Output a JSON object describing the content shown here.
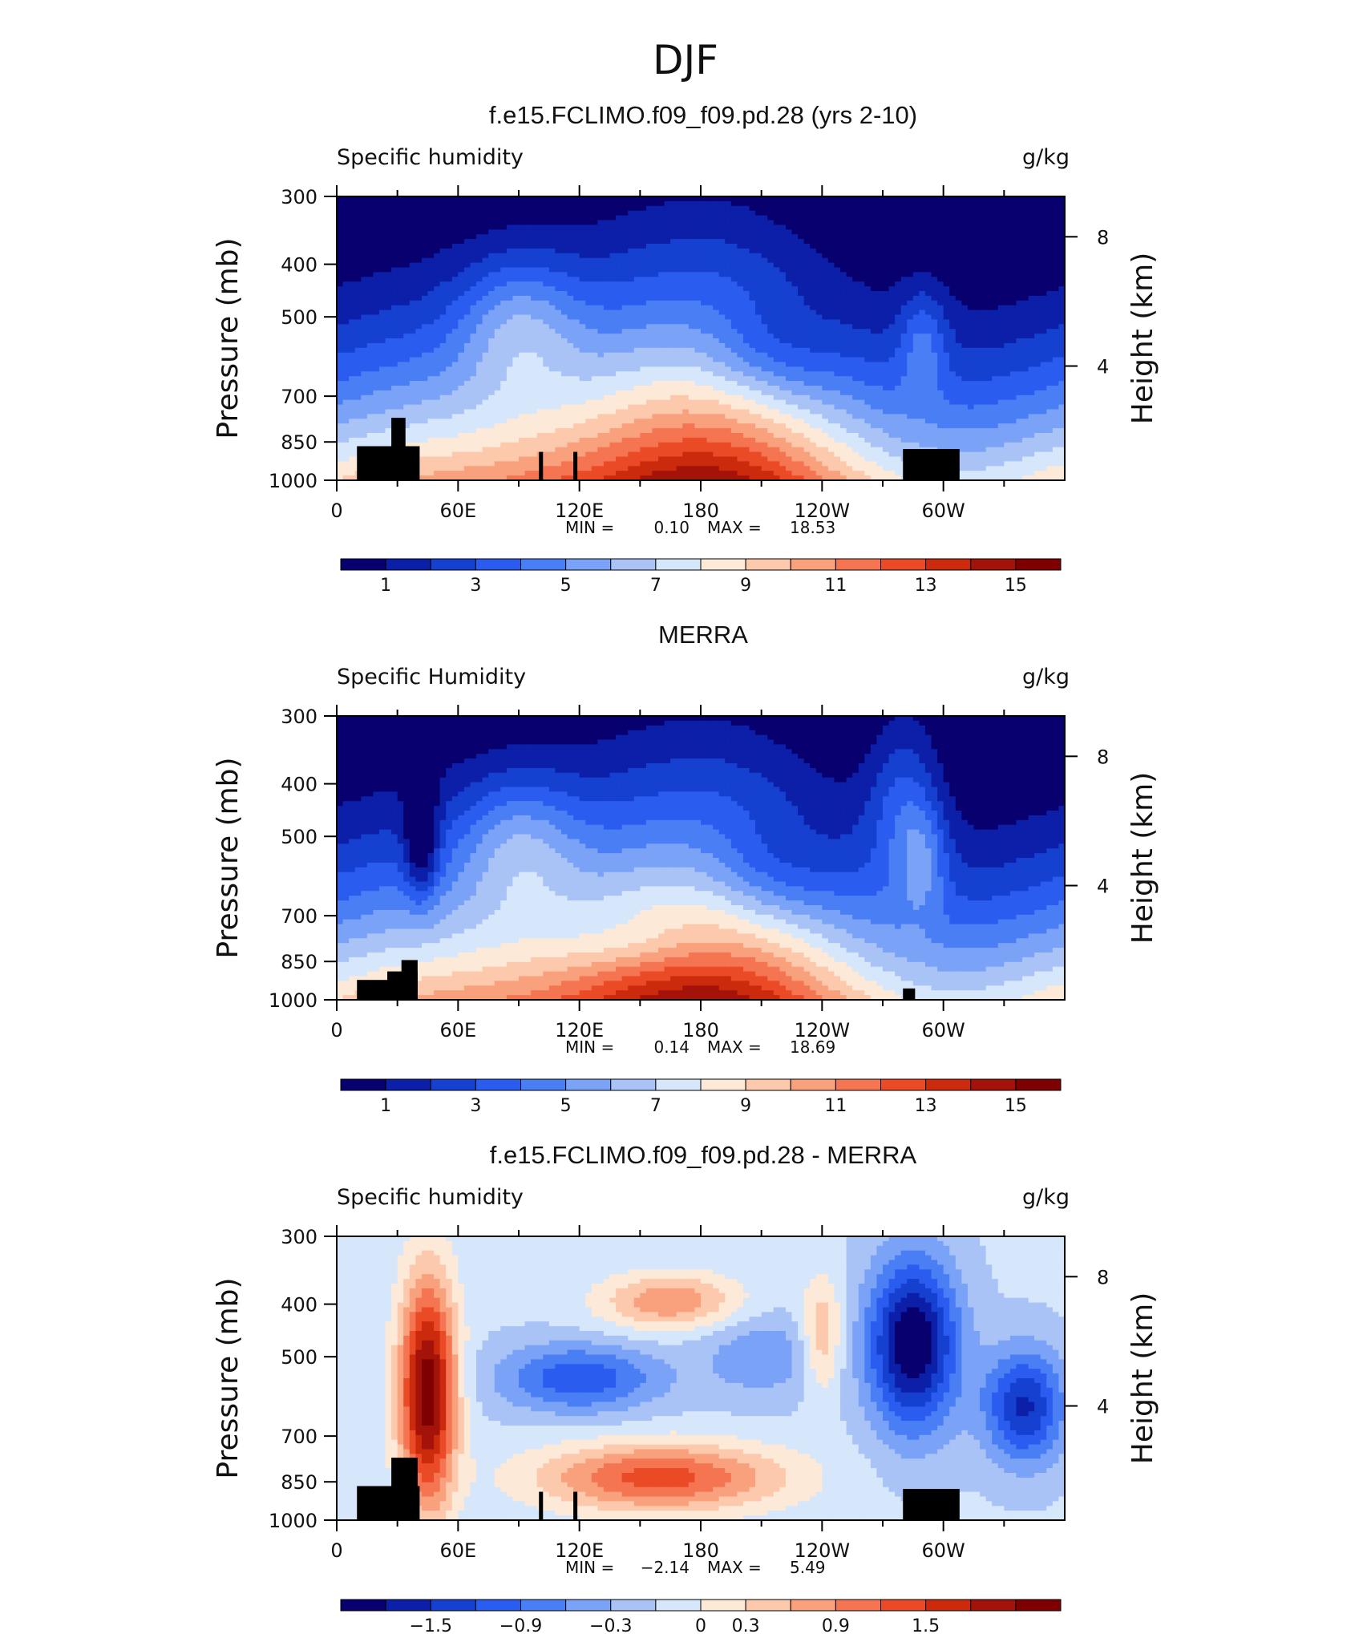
{
  "figure": {
    "title": "DJF"
  },
  "colormap": {
    "diverging": [
      "#08006e",
      "#0c1fa8",
      "#1540d0",
      "#2a5cf0",
      "#4a7ef5",
      "#7aa2f7",
      "#a9c3f6",
      "#d6e6fb",
      "#fde9d8",
      "#fcc9ad",
      "#f9a07c",
      "#f57451",
      "#ea4a25",
      "#cc2a0c",
      "#a4130a",
      "#7e0000"
    ],
    "land_mask": "#000000"
  },
  "panels": [
    {
      "title": "f.e15.FCLIMO.f09_f09.pd.28 (yrs 2-10)",
      "left_label": "Specific humidity",
      "right_label": "g/kg",
      "stats": {
        "min_label": "MIN =",
        "min_value": "0.10",
        "max_label": "MAX =",
        "max_value": "18.53"
      },
      "colorbar_labels": [
        "1",
        "3",
        "5",
        "7",
        "9",
        "11",
        "13",
        "15"
      ]
    },
    {
      "title": "MERRA",
      "left_label": "Specific Humidity",
      "right_label": "g/kg",
      "stats": {
        "min_label": "MIN =",
        "min_value": "0.14",
        "max_label": "MAX =",
        "max_value": "18.69"
      },
      "colorbar_labels": [
        "1",
        "3",
        "5",
        "7",
        "9",
        "11",
        "13",
        "15"
      ]
    },
    {
      "title": "f.e15.FCLIMO.f09_f09.pd.28 - MERRA",
      "left_label": "Specific humidity",
      "right_label": "g/kg",
      "stats": {
        "min_label": "MIN =",
        "min_value": "−2.14",
        "max_label": "MAX =",
        "max_value": "5.49"
      },
      "colorbar_labels": [
        "−1.5",
        "−0.9",
        "−0.3",
        "0",
        "0.3",
        "0.9",
        "1.5"
      ]
    }
  ],
  "chart_data": [
    {
      "type": "heatmap",
      "title": "f.e15.FCLIMO.f09_f09.pd.28 (yrs 2-10)",
      "xlabel": "",
      "ylabel": "Pressure (mb)",
      "y2label": "Height (km)",
      "x_ticks": [
        "0",
        "60E",
        "120E",
        "180",
        "120W",
        "60W"
      ],
      "y_ticks": [
        "300",
        "400",
        "500",
        "700",
        "850",
        "1000"
      ],
      "y2_ticks": [
        "8",
        "4"
      ],
      "ylim": [
        1000,
        300
      ],
      "y_scale": "log",
      "xlim": [
        0,
        360
      ],
      "units": "g/kg",
      "min": 0.1,
      "max": 18.53,
      "levels": [
        0,
        1,
        2,
        3,
        4,
        5,
        6,
        7,
        8,
        9,
        10,
        11,
        12,
        13,
        14,
        15
      ],
      "colorbar_ticks": [
        1,
        3,
        5,
        7,
        9,
        11,
        13,
        15
      ]
    },
    {
      "type": "heatmap",
      "title": "MERRA",
      "xlabel": "",
      "ylabel": "Pressure (mb)",
      "y2label": "Height (km)",
      "x_ticks": [
        "0",
        "60E",
        "120E",
        "180",
        "120W",
        "60W"
      ],
      "y_ticks": [
        "300",
        "400",
        "500",
        "700",
        "850",
        "1000"
      ],
      "y2_ticks": [
        "8",
        "4"
      ],
      "ylim": [
        1000,
        300
      ],
      "y_scale": "log",
      "xlim": [
        0,
        360
      ],
      "units": "g/kg",
      "min": 0.14,
      "max": 18.69,
      "levels": [
        0,
        1,
        2,
        3,
        4,
        5,
        6,
        7,
        8,
        9,
        10,
        11,
        12,
        13,
        14,
        15
      ],
      "colorbar_ticks": [
        1,
        3,
        5,
        7,
        9,
        11,
        13,
        15
      ]
    },
    {
      "type": "heatmap",
      "title": "f.e15.FCLIMO.f09_f09.pd.28 - MERRA",
      "xlabel": "",
      "ylabel": "Pressure (mb)",
      "y2label": "Height (km)",
      "x_ticks": [
        "0",
        "60E",
        "120E",
        "180",
        "120W",
        "60W"
      ],
      "y_ticks": [
        "300",
        "400",
        "500",
        "700",
        "850",
        "1000"
      ],
      "y2_ticks": [
        "8",
        "4"
      ],
      "ylim": [
        1000,
        300
      ],
      "y_scale": "log",
      "xlim": [
        0,
        360
      ],
      "units": "g/kg",
      "min": -2.14,
      "max": 5.49,
      "levels": [
        -2.1,
        -1.8,
        -1.5,
        -1.2,
        -0.9,
        -0.6,
        -0.3,
        0,
        0.3,
        0.6,
        0.9,
        1.2,
        1.5,
        1.8,
        2.1
      ],
      "colorbar_ticks": [
        -1.5,
        -0.9,
        -0.3,
        0,
        0.3,
        0.9,
        1.5
      ]
    }
  ],
  "axes": {
    "ylabel": "Pressure (mb)",
    "y2label": "Height (km)",
    "x_ticks": [
      "0",
      "60E",
      "120E",
      "180",
      "120W",
      "60W"
    ],
    "y_ticks": [
      "300",
      "400",
      "500",
      "700",
      "850",
      "1000"
    ],
    "y2_ticks": [
      "8",
      "4"
    ]
  }
}
